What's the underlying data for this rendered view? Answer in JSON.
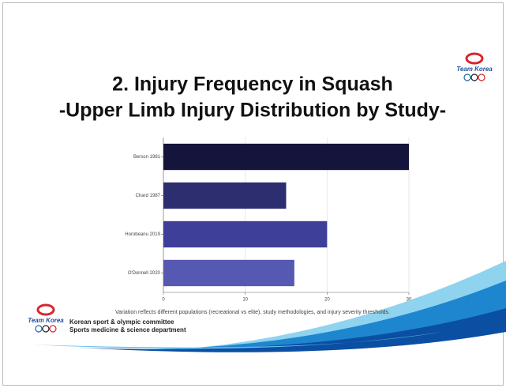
{
  "chart_data": {
    "type": "bar",
    "orientation": "horizontal",
    "title": "2. Injury Frequency in Squash",
    "subtitle": "-Upper Limb Injury Distribution by Study-",
    "categories": [
      "Berson 1981",
      "Chard 1987",
      "Horobeanu 2019",
      "O'Donnell 2020"
    ],
    "values": [
      30,
      15,
      20,
      16
    ],
    "colors": [
      "#15143c",
      "#2c2e70",
      "#3d3f98",
      "#5659b2"
    ],
    "xlim": [
      0,
      30
    ],
    "xticks": [
      0,
      10,
      20,
      30
    ],
    "grid": true,
    "note": "Variation reflects different populations (recreational vs elite), study methodologies, and injury severity thresholds."
  },
  "logo": {
    "text": "Team Korea"
  },
  "footer": {
    "line1": "Korean sport & olympic committee",
    "line2": "Sports medicine & science department"
  }
}
